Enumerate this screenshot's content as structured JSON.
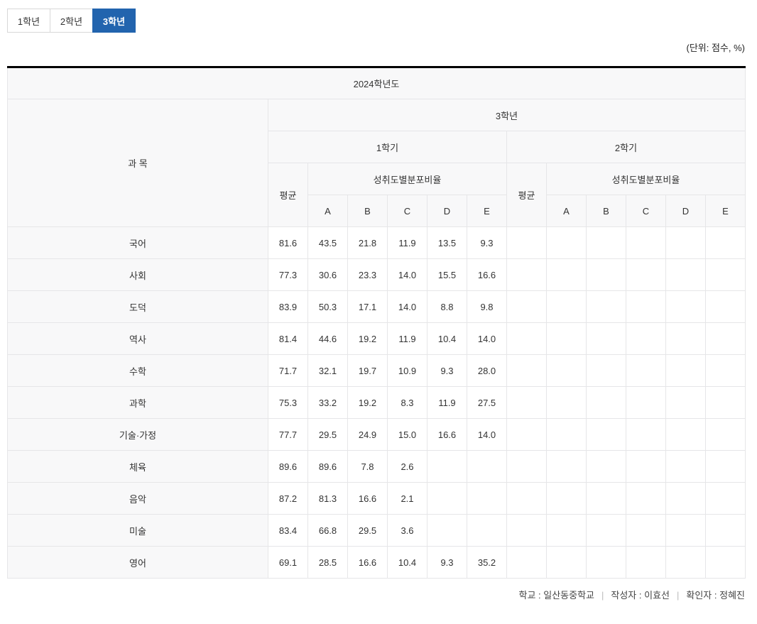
{
  "tabs": [
    {
      "label": "1학년",
      "active": false
    },
    {
      "label": "2학년",
      "active": false
    },
    {
      "label": "3학년",
      "active": true
    }
  ],
  "unit_note": "(단위: 점수, %)",
  "colors": {
    "tab_active_bg": "#2264ae",
    "header_bg": "#f8f8f9",
    "table_top_border": "#000000",
    "cell_border": "#e6e6e8"
  },
  "table": {
    "year_header": "2024학년도",
    "subject_header": "과 목",
    "grade_header": "3학년",
    "semester_headers": [
      "1학기",
      "2학기"
    ],
    "average_header": "평균",
    "distribution_header": "성취도별분포비율",
    "achievement_levels": [
      "A",
      "B",
      "C",
      "D",
      "E"
    ],
    "rows": [
      {
        "subject": "국어",
        "values": [
          "81.6",
          "43.5",
          "21.8",
          "11.9",
          "13.5",
          "9.3",
          "",
          "",
          "",
          "",
          "",
          ""
        ]
      },
      {
        "subject": "사회",
        "values": [
          "77.3",
          "30.6",
          "23.3",
          "14.0",
          "15.5",
          "16.6",
          "",
          "",
          "",
          "",
          "",
          ""
        ]
      },
      {
        "subject": "도덕",
        "values": [
          "83.9",
          "50.3",
          "17.1",
          "14.0",
          "8.8",
          "9.8",
          "",
          "",
          "",
          "",
          "",
          ""
        ]
      },
      {
        "subject": "역사",
        "values": [
          "81.4",
          "44.6",
          "19.2",
          "11.9",
          "10.4",
          "14.0",
          "",
          "",
          "",
          "",
          "",
          ""
        ]
      },
      {
        "subject": "수학",
        "values": [
          "71.7",
          "32.1",
          "19.7",
          "10.9",
          "9.3",
          "28.0",
          "",
          "",
          "",
          "",
          "",
          ""
        ]
      },
      {
        "subject": "과학",
        "values": [
          "75.3",
          "33.2",
          "19.2",
          "8.3",
          "11.9",
          "27.5",
          "",
          "",
          "",
          "",
          "",
          ""
        ]
      },
      {
        "subject": "기술·가정",
        "values": [
          "77.7",
          "29.5",
          "24.9",
          "15.0",
          "16.6",
          "14.0",
          "",
          "",
          "",
          "",
          "",
          ""
        ]
      },
      {
        "subject": "체육",
        "values": [
          "89.6",
          "89.6",
          "7.8",
          "2.6",
          "",
          "",
          "",
          "",
          "",
          "",
          "",
          ""
        ]
      },
      {
        "subject": "음악",
        "values": [
          "87.2",
          "81.3",
          "16.6",
          "2.1",
          "",
          "",
          "",
          "",
          "",
          "",
          "",
          ""
        ]
      },
      {
        "subject": "미술",
        "values": [
          "83.4",
          "66.8",
          "29.5",
          "3.6",
          "",
          "",
          "",
          "",
          "",
          "",
          "",
          ""
        ]
      },
      {
        "subject": "영어",
        "values": [
          "69.1",
          "28.5",
          "16.6",
          "10.4",
          "9.3",
          "35.2",
          "",
          "",
          "",
          "",
          "",
          ""
        ]
      }
    ]
  },
  "footer": {
    "segments": [
      "학교 : 일산동중학교",
      "작성자 : 이효선",
      "확인자 : 정혜진"
    ],
    "separator": "|"
  }
}
